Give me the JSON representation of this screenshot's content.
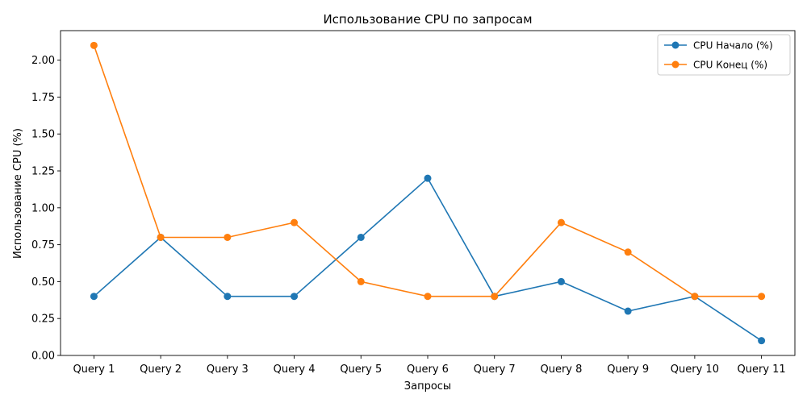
{
  "chart_data": {
    "type": "line",
    "title": "Использование CPU по запросам",
    "xlabel": "Запросы",
    "ylabel": "Использование CPU (%)",
    "categories": [
      "Query 1",
      "Query 2",
      "Query 3",
      "Query 4",
      "Query 5",
      "Query 6",
      "Query 7",
      "Query 8",
      "Query 9",
      "Query 10",
      "Query 11"
    ],
    "ylim": [
      0,
      2.2
    ],
    "yticks": [
      "0.00",
      "0.25",
      "0.50",
      "0.75",
      "1.00",
      "1.25",
      "1.50",
      "1.75",
      "2.00"
    ],
    "grid": false,
    "legend_position": "top-right",
    "series": [
      {
        "name": "CPU Начало (%)",
        "color": "#1f77b4",
        "values": [
          0.4,
          0.8,
          0.4,
          0.4,
          0.8,
          1.2,
          0.4,
          0.5,
          0.3,
          0.4,
          0.1
        ]
      },
      {
        "name": "CPU Конец (%)",
        "color": "#ff7f0e",
        "values": [
          2.1,
          0.8,
          0.8,
          0.9,
          0.5,
          0.4,
          0.4,
          0.9,
          0.7,
          0.4,
          0.4
        ]
      }
    ]
  }
}
